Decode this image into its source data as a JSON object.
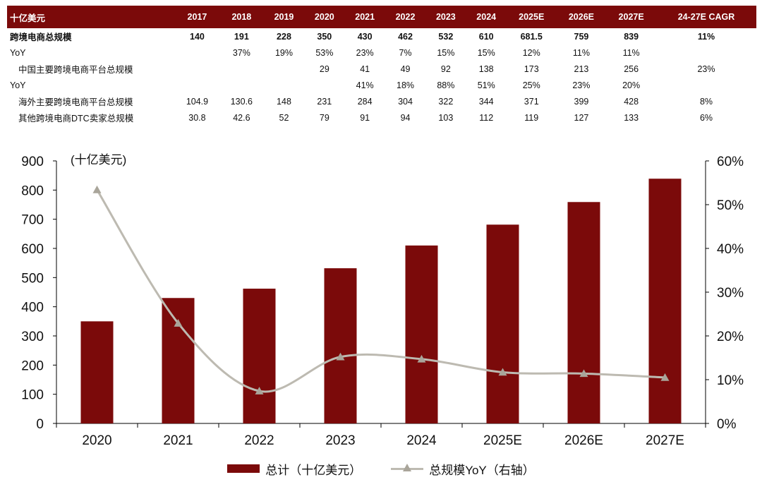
{
  "table": {
    "header": [
      "十亿美元",
      "2017",
      "2018",
      "2019",
      "2020",
      "2021",
      "2022",
      "2023",
      "2024",
      "2025E",
      "2026E",
      "2027E",
      "24-27E CAGR"
    ],
    "rows": [
      {
        "bold": true,
        "indent": false,
        "cells": [
          "跨境电商总规模",
          "140",
          "191",
          "228",
          "350",
          "430",
          "462",
          "532",
          "610",
          "681.5",
          "759",
          "839",
          "11%"
        ]
      },
      {
        "bold": false,
        "indent": false,
        "cells": [
          "YoY",
          "",
          "37%",
          "19%",
          "53%",
          "23%",
          "7%",
          "15%",
          "15%",
          "12%",
          "11%",
          "11%",
          ""
        ]
      },
      {
        "bold": false,
        "indent": true,
        "cells": [
          "中国主要跨境电商平台总规模",
          "",
          "",
          "",
          "29",
          "41",
          "49",
          "92",
          "138",
          "173",
          "213",
          "256",
          "23%"
        ]
      },
      {
        "bold": false,
        "indent": false,
        "cells": [
          "YoY",
          "",
          "",
          "",
          "",
          "41%",
          "18%",
          "88%",
          "51%",
          "25%",
          "23%",
          "20%",
          ""
        ]
      },
      {
        "bold": false,
        "indent": true,
        "cells": [
          "海外主要跨境电商平台总规模",
          "104.9",
          "130.6",
          "148",
          "231",
          "284",
          "304",
          "322",
          "344",
          "371",
          "399",
          "428",
          "8%"
        ]
      },
      {
        "bold": false,
        "indent": true,
        "cells": [
          "其他跨境电商DTC卖家总规模",
          "30.8",
          "42.6",
          "52",
          "79",
          "91",
          "94",
          "103",
          "112",
          "119",
          "127",
          "133",
          "6%"
        ]
      }
    ]
  },
  "chart_data": {
    "type": "bar",
    "categories": [
      "2020",
      "2021",
      "2022",
      "2023",
      "2024",
      "2025E",
      "2026E",
      "2027E"
    ],
    "series": [
      {
        "name": "总计（十亿美元）",
        "type": "bar",
        "axis": "left",
        "color": "#7b0a0a",
        "values": [
          350,
          430,
          462,
          532,
          610,
          681.5,
          759,
          839
        ]
      },
      {
        "name": "总规模YoY（右轴）",
        "type": "line",
        "axis": "right",
        "color": "#bdbab1",
        "marker": "triangle",
        "values": [
          53.4,
          22.9,
          7.4,
          15.2,
          14.7,
          11.7,
          11.4,
          10.5
        ]
      }
    ],
    "left_axis_unit": "(十亿美元)",
    "ylim": [
      0,
      900
    ],
    "yticks": [
      "0",
      "100",
      "200",
      "300",
      "400",
      "500",
      "600",
      "700",
      "800",
      "900"
    ],
    "y2lim": [
      0,
      60
    ],
    "y2ticks": [
      "0%",
      "10%",
      "20%",
      "30%",
      "40%",
      "50%",
      "60%"
    ],
    "legend_position": "bottom",
    "grid": false
  }
}
